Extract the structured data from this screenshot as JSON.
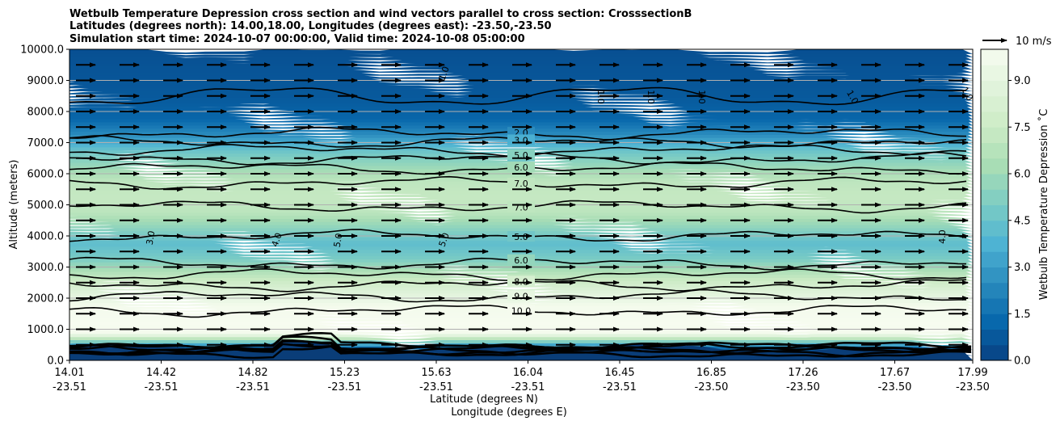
{
  "chart_data": {
    "type": "contour",
    "title_lines": [
      "Wetbulb Temperature Depression cross section and wind vectors parallel to cross section: CrosssectionB",
      "Latitudes (degrees north): 14.00,18.00, Longitudes (degrees east): -23.50,-23.50",
      "Simulation start time: 2024-10-07 00:00:00, Valid time: 2024-10-08 05:00:00"
    ],
    "ylabel": "Altitude (meters)",
    "xlabel_lat": "Latitude (degrees N)",
    "xlabel_lon": "Longitude (degrees E)",
    "ylim": [
      0,
      10000
    ],
    "yticks": [
      "0.0",
      "1000.0",
      "2000.0",
      "3000.0",
      "4000.0",
      "5000.0",
      "6000.0",
      "7000.0",
      "8000.0",
      "9000.0",
      "10000.0"
    ],
    "xticks_lat": [
      "14.01",
      "14.42",
      "14.82",
      "15.23",
      "15.63",
      "16.04",
      "16.45",
      "16.85",
      "17.26",
      "17.67",
      "17.99"
    ],
    "xticks_lon": [
      "-23.51",
      "-23.51",
      "-23.51",
      "-23.51",
      "-23.51",
      "-23.51",
      "-23.51",
      "-23.50",
      "-23.50",
      "-23.50",
      "-23.50"
    ],
    "colorbar": {
      "label": "Wetbulb Temperature Depression ˚C",
      "ticks": [
        "0.0",
        "1.5",
        "3.0",
        "4.5",
        "6.0",
        "7.5",
        "9.0"
      ],
      "range": [
        0,
        10
      ]
    },
    "quiver_key": "10 m/s",
    "profile": [
      {
        "alt": 0,
        "value": 0.3
      },
      {
        "alt": 400,
        "value": 0.6
      },
      {
        "alt": 900,
        "value": 9.8
      },
      {
        "alt": 1200,
        "value": 10.0
      },
      {
        "alt": 1800,
        "value": 9.8
      },
      {
        "alt": 2300,
        "value": 8.5
      },
      {
        "alt": 2800,
        "value": 6.9
      },
      {
        "alt": 3300,
        "value": 5.0
      },
      {
        "alt": 3800,
        "value": 4.2
      },
      {
        "alt": 4300,
        "value": 5.5
      },
      {
        "alt": 4800,
        "value": 6.9
      },
      {
        "alt": 5300,
        "value": 7.3
      },
      {
        "alt": 5800,
        "value": 7.0
      },
      {
        "alt": 6300,
        "value": 5.8
      },
      {
        "alt": 6800,
        "value": 4.5
      },
      {
        "alt": 7300,
        "value": 2.5
      },
      {
        "alt": 7800,
        "value": 1.2
      },
      {
        "alt": 8500,
        "value": 0.8
      },
      {
        "alt": 9500,
        "value": 0.6
      },
      {
        "alt": 10000,
        "value": 0.5
      }
    ],
    "contours": [
      {
        "alt": 7300,
        "label": "2.0"
      },
      {
        "alt": 7020,
        "label": "3.0"
      },
      {
        "alt": 6760,
        "label": "4.0"
      },
      {
        "alt": 6480,
        "label": "5.0"
      },
      {
        "alt": 6180,
        "label": "6.0"
      },
      {
        "alt": 5700,
        "label": "7.0"
      },
      {
        "alt": 4950,
        "label": "7.0"
      },
      {
        "alt": 4000,
        "label": "5.0"
      },
      {
        "alt": 3120,
        "label": "6.0"
      },
      {
        "alt": 2750,
        "label": "7.0"
      },
      {
        "alt": 2420,
        "label": "8.0"
      },
      {
        "alt": 2060,
        "label": "9.0"
      },
      {
        "alt": 1600,
        "label": "10.0"
      }
    ],
    "inline_labels": [
      "1.0",
      "1.0",
      "1.0",
      "1.0",
      "1.0",
      "3.0",
      "4.0",
      "5.0",
      "5.0",
      "4.0",
      "1.0"
    ],
    "wind": {
      "u_ms": 8,
      "v_ms": 0
    }
  }
}
